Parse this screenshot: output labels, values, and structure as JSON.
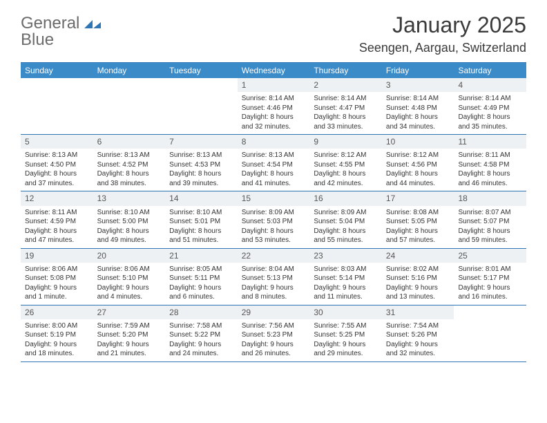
{
  "logo": {
    "text_gray": "General",
    "text_blue": "Blue",
    "icon_color": "#2e75b6"
  },
  "title": "January 2025",
  "location": "Seengen, Aargau, Switzerland",
  "colors": {
    "header_bar": "#3b8bc9",
    "divider": "#2e75b6",
    "daynum_bg": "#eef1f3",
    "text": "#333333",
    "background": "#ffffff"
  },
  "weekdays": [
    "Sunday",
    "Monday",
    "Tuesday",
    "Wednesday",
    "Thursday",
    "Friday",
    "Saturday"
  ],
  "weeks": [
    [
      {
        "num": "",
        "sunrise": "",
        "sunset": "",
        "daylight": ""
      },
      {
        "num": "",
        "sunrise": "",
        "sunset": "",
        "daylight": ""
      },
      {
        "num": "",
        "sunrise": "",
        "sunset": "",
        "daylight": ""
      },
      {
        "num": "1",
        "sunrise": "Sunrise: 8:14 AM",
        "sunset": "Sunset: 4:46 PM",
        "daylight": "Daylight: 8 hours and 32 minutes."
      },
      {
        "num": "2",
        "sunrise": "Sunrise: 8:14 AM",
        "sunset": "Sunset: 4:47 PM",
        "daylight": "Daylight: 8 hours and 33 minutes."
      },
      {
        "num": "3",
        "sunrise": "Sunrise: 8:14 AM",
        "sunset": "Sunset: 4:48 PM",
        "daylight": "Daylight: 8 hours and 34 minutes."
      },
      {
        "num": "4",
        "sunrise": "Sunrise: 8:14 AM",
        "sunset": "Sunset: 4:49 PM",
        "daylight": "Daylight: 8 hours and 35 minutes."
      }
    ],
    [
      {
        "num": "5",
        "sunrise": "Sunrise: 8:13 AM",
        "sunset": "Sunset: 4:50 PM",
        "daylight": "Daylight: 8 hours and 37 minutes."
      },
      {
        "num": "6",
        "sunrise": "Sunrise: 8:13 AM",
        "sunset": "Sunset: 4:52 PM",
        "daylight": "Daylight: 8 hours and 38 minutes."
      },
      {
        "num": "7",
        "sunrise": "Sunrise: 8:13 AM",
        "sunset": "Sunset: 4:53 PM",
        "daylight": "Daylight: 8 hours and 39 minutes."
      },
      {
        "num": "8",
        "sunrise": "Sunrise: 8:13 AM",
        "sunset": "Sunset: 4:54 PM",
        "daylight": "Daylight: 8 hours and 41 minutes."
      },
      {
        "num": "9",
        "sunrise": "Sunrise: 8:12 AM",
        "sunset": "Sunset: 4:55 PM",
        "daylight": "Daylight: 8 hours and 42 minutes."
      },
      {
        "num": "10",
        "sunrise": "Sunrise: 8:12 AM",
        "sunset": "Sunset: 4:56 PM",
        "daylight": "Daylight: 8 hours and 44 minutes."
      },
      {
        "num": "11",
        "sunrise": "Sunrise: 8:11 AM",
        "sunset": "Sunset: 4:58 PM",
        "daylight": "Daylight: 8 hours and 46 minutes."
      }
    ],
    [
      {
        "num": "12",
        "sunrise": "Sunrise: 8:11 AM",
        "sunset": "Sunset: 4:59 PM",
        "daylight": "Daylight: 8 hours and 47 minutes."
      },
      {
        "num": "13",
        "sunrise": "Sunrise: 8:10 AM",
        "sunset": "Sunset: 5:00 PM",
        "daylight": "Daylight: 8 hours and 49 minutes."
      },
      {
        "num": "14",
        "sunrise": "Sunrise: 8:10 AM",
        "sunset": "Sunset: 5:01 PM",
        "daylight": "Daylight: 8 hours and 51 minutes."
      },
      {
        "num": "15",
        "sunrise": "Sunrise: 8:09 AM",
        "sunset": "Sunset: 5:03 PM",
        "daylight": "Daylight: 8 hours and 53 minutes."
      },
      {
        "num": "16",
        "sunrise": "Sunrise: 8:09 AM",
        "sunset": "Sunset: 5:04 PM",
        "daylight": "Daylight: 8 hours and 55 minutes."
      },
      {
        "num": "17",
        "sunrise": "Sunrise: 8:08 AM",
        "sunset": "Sunset: 5:05 PM",
        "daylight": "Daylight: 8 hours and 57 minutes."
      },
      {
        "num": "18",
        "sunrise": "Sunrise: 8:07 AM",
        "sunset": "Sunset: 5:07 PM",
        "daylight": "Daylight: 8 hours and 59 minutes."
      }
    ],
    [
      {
        "num": "19",
        "sunrise": "Sunrise: 8:06 AM",
        "sunset": "Sunset: 5:08 PM",
        "daylight": "Daylight: 9 hours and 1 minute."
      },
      {
        "num": "20",
        "sunrise": "Sunrise: 8:06 AM",
        "sunset": "Sunset: 5:10 PM",
        "daylight": "Daylight: 9 hours and 4 minutes."
      },
      {
        "num": "21",
        "sunrise": "Sunrise: 8:05 AM",
        "sunset": "Sunset: 5:11 PM",
        "daylight": "Daylight: 9 hours and 6 minutes."
      },
      {
        "num": "22",
        "sunrise": "Sunrise: 8:04 AM",
        "sunset": "Sunset: 5:13 PM",
        "daylight": "Daylight: 9 hours and 8 minutes."
      },
      {
        "num": "23",
        "sunrise": "Sunrise: 8:03 AM",
        "sunset": "Sunset: 5:14 PM",
        "daylight": "Daylight: 9 hours and 11 minutes."
      },
      {
        "num": "24",
        "sunrise": "Sunrise: 8:02 AM",
        "sunset": "Sunset: 5:16 PM",
        "daylight": "Daylight: 9 hours and 13 minutes."
      },
      {
        "num": "25",
        "sunrise": "Sunrise: 8:01 AM",
        "sunset": "Sunset: 5:17 PM",
        "daylight": "Daylight: 9 hours and 16 minutes."
      }
    ],
    [
      {
        "num": "26",
        "sunrise": "Sunrise: 8:00 AM",
        "sunset": "Sunset: 5:19 PM",
        "daylight": "Daylight: 9 hours and 18 minutes."
      },
      {
        "num": "27",
        "sunrise": "Sunrise: 7:59 AM",
        "sunset": "Sunset: 5:20 PM",
        "daylight": "Daylight: 9 hours and 21 minutes."
      },
      {
        "num": "28",
        "sunrise": "Sunrise: 7:58 AM",
        "sunset": "Sunset: 5:22 PM",
        "daylight": "Daylight: 9 hours and 24 minutes."
      },
      {
        "num": "29",
        "sunrise": "Sunrise: 7:56 AM",
        "sunset": "Sunset: 5:23 PM",
        "daylight": "Daylight: 9 hours and 26 minutes."
      },
      {
        "num": "30",
        "sunrise": "Sunrise: 7:55 AM",
        "sunset": "Sunset: 5:25 PM",
        "daylight": "Daylight: 9 hours and 29 minutes."
      },
      {
        "num": "31",
        "sunrise": "Sunrise: 7:54 AM",
        "sunset": "Sunset: 5:26 PM",
        "daylight": "Daylight: 9 hours and 32 minutes."
      },
      {
        "num": "",
        "sunrise": "",
        "sunset": "",
        "daylight": ""
      }
    ]
  ]
}
